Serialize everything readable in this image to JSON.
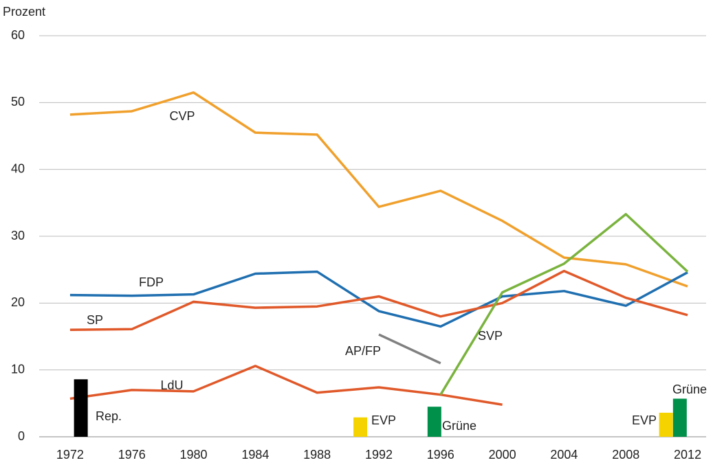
{
  "chart_data": {
    "type": "line",
    "y_label": "Prozent",
    "x": [
      1972,
      1976,
      1980,
      1984,
      1988,
      1992,
      1996,
      2000,
      2004,
      2008,
      2012
    ],
    "xlim": [
      1970,
      2013.2
    ],
    "xticks": [
      1972,
      1976,
      1980,
      1984,
      1988,
      1992,
      1996,
      2000,
      2004,
      2008,
      2012
    ],
    "ylim": [
      0,
      60
    ],
    "yticks": [
      0,
      10,
      20,
      30,
      40,
      50,
      60
    ],
    "grid": true,
    "series": [
      {
        "name": "CVP",
        "color": "#f0a02c",
        "values": [
          48.2,
          48.7,
          51.5,
          45.5,
          45.2,
          34.4,
          36.8,
          32.3,
          26.8,
          25.8,
          22.5
        ]
      },
      {
        "name": "FDP",
        "color": "#1f6fb0",
        "values": [
          21.2,
          21.1,
          21.3,
          24.4,
          24.7,
          18.8,
          16.5,
          21.0,
          21.8,
          19.6,
          24.6
        ]
      },
      {
        "name": "SP",
        "color": "#e0592a",
        "values": [
          16.0,
          16.1,
          20.2,
          19.3,
          19.5,
          21.0,
          18.0,
          20.0,
          24.8,
          20.8,
          18.2
        ]
      },
      {
        "name": "LdU",
        "color": "#e0592a",
        "values": [
          5.7,
          7.0,
          6.8,
          10.6,
          6.6,
          7.4,
          6.3,
          4.8,
          null,
          null,
          null
        ]
      },
      {
        "name": "SVP",
        "color": "#7ab33e",
        "values": [
          null,
          null,
          null,
          null,
          null,
          null,
          6.3,
          21.6,
          25.9,
          33.3,
          24.7
        ]
      },
      {
        "name": "AP/FP",
        "color": "#808080",
        "values": [
          null,
          null,
          null,
          null,
          null,
          15.3,
          11.0,
          null,
          null,
          null,
          null
        ]
      }
    ],
    "bars": [
      {
        "name": "Rep.",
        "x": 1972.7,
        "value": 8.6,
        "color": "#000000"
      },
      {
        "name": "EVP",
        "x": 1990.8,
        "value": 2.9,
        "color": "#f5d300"
      },
      {
        "name": "Grüne",
        "x": 1995.6,
        "value": 4.5,
        "color": "#00904a"
      },
      {
        "name": "EVP",
        "x": 2010.6,
        "value": 3.6,
        "color": "#f5d300"
      },
      {
        "name": "Grüne",
        "x": 2011.5,
        "value": 5.7,
        "color": "#00904a"
      }
    ]
  }
}
